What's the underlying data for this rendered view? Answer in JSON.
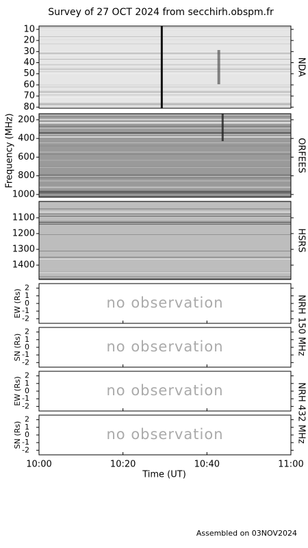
{
  "title": "Survey of 27 OCT 2024 from secchirh.obspm.fr",
  "x_axis": {
    "label": "Time (UT)",
    "xlim": [
      0,
      60
    ],
    "xticks": [
      {
        "value": 0,
        "label": "10:00"
      },
      {
        "value": 20,
        "label": "10:20"
      },
      {
        "value": 40,
        "label": "10:40"
      },
      {
        "value": 60,
        "label": "11:00"
      }
    ]
  },
  "frequency_label": "Frequency (MHz)",
  "spectrograms": [
    {
      "name": "NDA",
      "ylim": [
        7,
        81
      ],
      "yticks": [
        10,
        20,
        30,
        40,
        50,
        60,
        70,
        80
      ]
    },
    {
      "name": "ORFEES",
      "ylim": [
        135,
        1030
      ],
      "yticks": [
        200,
        400,
        600,
        800,
        1000
      ]
    },
    {
      "name": "HSRS",
      "ylim": [
        996,
        1491
      ],
      "yticks": [
        1100,
        1200,
        1300,
        1400
      ]
    }
  ],
  "nrh": {
    "ylim": [
      -2.6,
      2.6
    ],
    "yticks": [
      -2,
      -1,
      0,
      1,
      2
    ],
    "panels": [
      {
        "ylabel": "EW (Rs)",
        "message": "no observation"
      },
      {
        "ylabel": "SN (Rs)",
        "message": "no observation"
      },
      {
        "ylabel": "EW (Rs)",
        "message": "no observation"
      },
      {
        "ylabel": "SN (Rs)",
        "message": "no observation"
      }
    ],
    "bands": [
      "NRH 150 MHz",
      "NRH 432 MHz"
    ]
  },
  "footer": "Assembled on 03NOV2024"
}
